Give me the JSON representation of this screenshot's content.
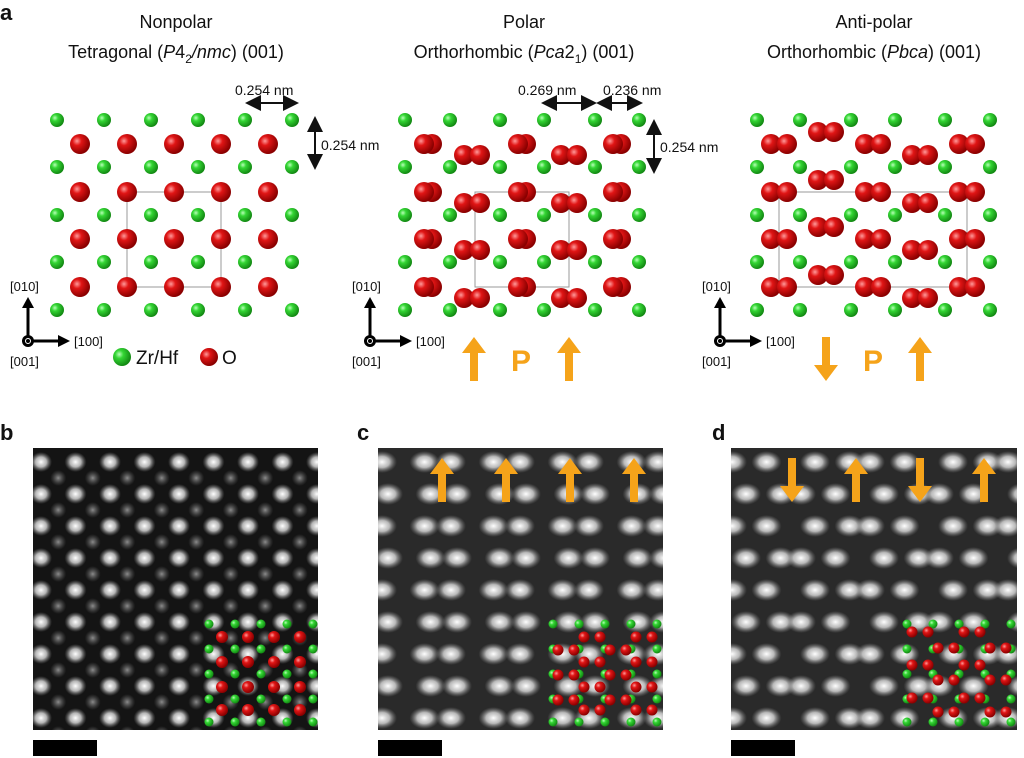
{
  "panel_labels": {
    "a": "a",
    "b": "b",
    "c": "c",
    "d": "d"
  },
  "structures": [
    {
      "title_line1": "Nonpolar",
      "title_pre": "Tetragonal (",
      "title_italic": "P",
      "title_mid": "4",
      "title_sub": "2",
      "title_italic2": "/nmc",
      "title_post": ") (001)"
    },
    {
      "title_line1": "Polar",
      "title_pre": "Orthorhombic (",
      "title_italic": "Pca",
      "title_mid": "2",
      "title_sub": "1",
      "title_italic2": "",
      "title_post": ") (001)"
    },
    {
      "title_line1": "Anti-polar",
      "title_pre": "Orthorhombic (",
      "title_italic": "Pbca",
      "title_mid": "",
      "title_sub": "",
      "title_italic2": "",
      "title_post": ") (001)"
    }
  ],
  "dimensions": {
    "tetragonal_a": "0.254 nm",
    "tetragonal_b": "0.254 nm",
    "polar_a1": "0.269 nm",
    "polar_a2": "0.236 nm",
    "polar_b": "0.254 nm"
  },
  "axes": {
    "y": "[010]",
    "x": "[100]",
    "z": "[001]"
  },
  "legend": [
    {
      "label": "Zr/Hf",
      "color": "#2fd02f"
    },
    {
      "label": "O",
      "color": "#dd1111"
    }
  ],
  "polarization": {
    "label": "P",
    "color": "#f5a31a",
    "polar_arrows": [
      "up",
      "up"
    ],
    "antipolar_arrows": [
      "down",
      "up"
    ],
    "haadf_c_arrows": [
      "up",
      "up",
      "up",
      "up"
    ],
    "haadf_d_arrows": [
      "down",
      "up",
      "down",
      "up"
    ]
  },
  "colors": {
    "zr_hf": "#2fd02f",
    "oxygen": "#dd1111",
    "arrow": "#f5a31a"
  }
}
